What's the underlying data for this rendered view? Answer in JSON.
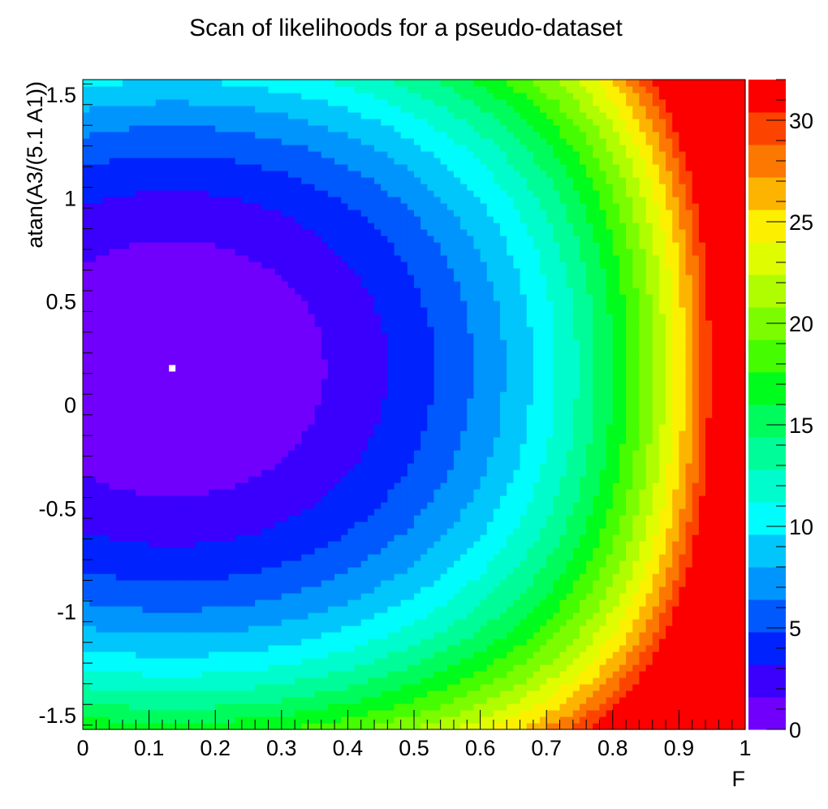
{
  "chart_data": {
    "type": "heatmap",
    "title": "Scan of likelihoods for a pseudo-dataset",
    "xlabel": "F",
    "ylabel": "atan(A3/(5.1 A1))",
    "xlim": [
      0,
      1
    ],
    "ylim": [
      -1.5708,
      1.5708
    ],
    "zlim": [
      0,
      32
    ],
    "x_ticks": [
      0,
      0.1,
      0.2,
      0.3,
      0.4,
      0.5,
      0.6,
      0.7,
      0.8,
      0.9,
      1
    ],
    "x_tick_labels": [
      "0",
      "0.1",
      "0.2",
      "0.3",
      "0.4",
      "0.5",
      "0.6",
      "0.7",
      "0.8",
      "0.9",
      "1"
    ],
    "y_ticks": [
      -1.5,
      -1,
      -0.5,
      0,
      0.5,
      1,
      1.5
    ],
    "y_tick_labels": [
      "-1.5",
      "-1",
      "-0.5",
      "0",
      "0.5",
      "1",
      "1.5"
    ],
    "z_ticks": [
      0,
      5,
      10,
      15,
      20,
      25,
      30
    ],
    "z_tick_labels": [
      "0",
      "5",
      "10",
      "15",
      "20",
      "25",
      "30"
    ],
    "minimum_marker": {
      "x": 0.135,
      "y": 0.175,
      "color": "#ffffff"
    },
    "contour_levels": [
      0,
      1.6,
      3.2,
      4.8,
      6.4,
      8,
      9.6,
      11.2,
      12.8,
      14.4,
      16,
      17.6,
      19.2,
      20.8,
      22.4,
      24,
      25.6,
      27.2,
      28.8,
      30.4,
      32
    ],
    "palette": [
      "#7000fc",
      "#3a00fc",
      "#0022fc",
      "#0059fc",
      "#0095fc",
      "#00c6fc",
      "#00fcfc",
      "#00fccc",
      "#00fc98",
      "#00fc5c",
      "#00fc1c",
      "#46fc00",
      "#7cfc00",
      "#b0fc00",
      "#e0fc00",
      "#fcf000",
      "#fcb400",
      "#fc7800",
      "#fc4400",
      "#fc0000"
    ],
    "grid": false,
    "legend": "right color scale"
  }
}
